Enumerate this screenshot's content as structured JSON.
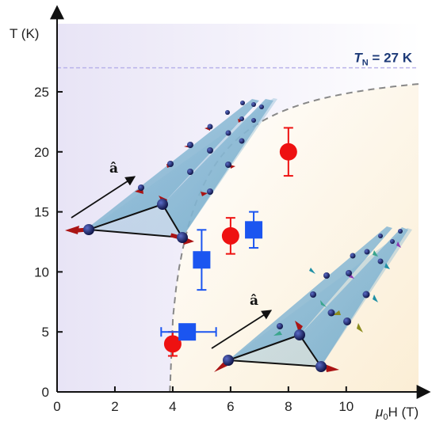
{
  "chart_data": {
    "type": "scatter",
    "xlabel_prefix": "μ",
    "xlabel_sub": "0",
    "xlabel_suffix": "H (T)",
    "ylabel": "T (K)",
    "xlim": [
      0,
      12.5
    ],
    "ylim": [
      0,
      31
    ],
    "x_ticks": [
      "0",
      "2",
      "4",
      "6",
      "8",
      "10"
    ],
    "x_tick_values": [
      0,
      2,
      4,
      6,
      8,
      10
    ],
    "y_ticks": [
      "0",
      "5",
      "10",
      "15",
      "20",
      "25"
    ],
    "y_tick_values": [
      0,
      5,
      10,
      15,
      20,
      25
    ],
    "tn_line": 27,
    "tn_label_main": "T",
    "tn_label_sub": "N",
    "tn_label_rest": " = 27 K",
    "phase_boundary": {
      "x_start": 3.9,
      "x_end": 12.5,
      "h0": 3.9,
      "tn": 27
    },
    "series": [
      {
        "marker": "circle",
        "color": "#ee1111",
        "points": [
          {
            "x": 4.0,
            "y": 4.0,
            "yerr": [
              3.0,
              5.0
            ]
          },
          {
            "x": 6.0,
            "y": 13.0,
            "yerr": [
              11.5,
              14.5
            ]
          },
          {
            "x": 8.0,
            "y": 20.0,
            "yerr": [
              18.0,
              22.0
            ]
          }
        ]
      },
      {
        "marker": "square",
        "color": "#1b55f0",
        "points": [
          {
            "x": 4.5,
            "y": 5.0,
            "xerr": [
              3.6,
              5.5
            ]
          },
          {
            "x": 5.0,
            "y": 11.0,
            "yerr": [
              8.5,
              13.5
            ]
          },
          {
            "x": 6.8,
            "y": 13.5,
            "yerr": [
              12.0,
              15.0
            ]
          }
        ]
      }
    ],
    "insets": [
      {
        "name": "upper-left-spin-structure",
        "vector_label": "â"
      },
      {
        "name": "lower-right-spin-structure",
        "vector_label": "â"
      }
    ],
    "colors": {
      "axis": "#111111",
      "tn_line": "#b9b3ea",
      "boundary": "#888888",
      "afm_bg": "#ebe7f7",
      "para_bg": "#fbf1dc"
    }
  }
}
